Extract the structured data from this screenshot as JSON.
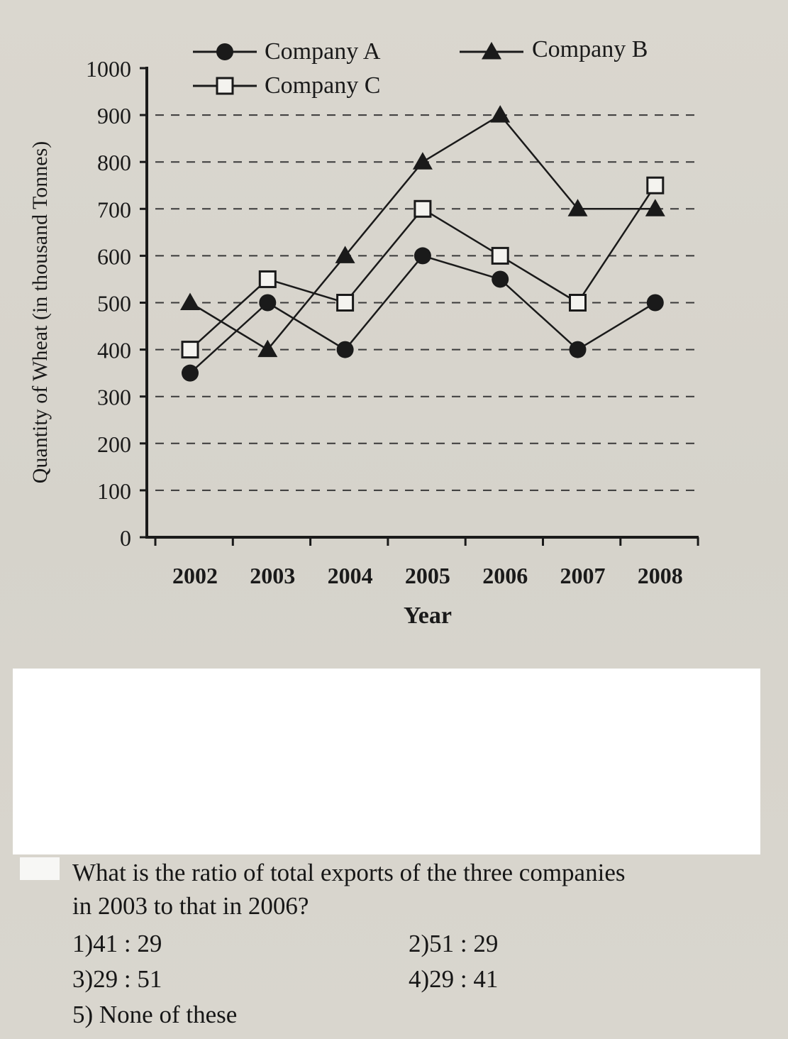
{
  "chart_data": {
    "type": "line",
    "ylabel": "Quantity of Wheat (in thousand Tonnes)",
    "xlabel": "Year",
    "categories": [
      "2002",
      "2003",
      "2004",
      "2005",
      "2006",
      "2007",
      "2008"
    ],
    "ylim": [
      0,
      1000
    ],
    "yticks": [
      "0",
      "100",
      "200",
      "300",
      "400",
      "500",
      "600",
      "700",
      "800",
      "900",
      "1000"
    ],
    "grid": "dashed horizontal",
    "legend_position": "top",
    "series": [
      {
        "name": "Company A",
        "marker": "filled-circle",
        "values": [
          350,
          500,
          400,
          600,
          550,
          400,
          500
        ]
      },
      {
        "name": "Company B",
        "marker": "filled-triangle",
        "values": [
          500,
          400,
          600,
          800,
          900,
          700,
          700
        ]
      },
      {
        "name": "Company C",
        "marker": "open-square",
        "values": [
          400,
          550,
          500,
          700,
          600,
          500,
          750
        ]
      }
    ],
    "colors": {
      "line": "#1a1a1a",
      "grid": "#3a3a3a",
      "background": "#d9d6ce"
    }
  },
  "question": {
    "line1": "What is the ratio of total exports of the three companies",
    "line2": "in 2003 to that in 2006?",
    "options": [
      {
        "label": "1)41 : 29"
      },
      {
        "label": "2)51 : 29"
      },
      {
        "label": "3)29 : 51"
      },
      {
        "label": "4)29 : 41"
      },
      {
        "label": "5) None of these"
      }
    ]
  }
}
